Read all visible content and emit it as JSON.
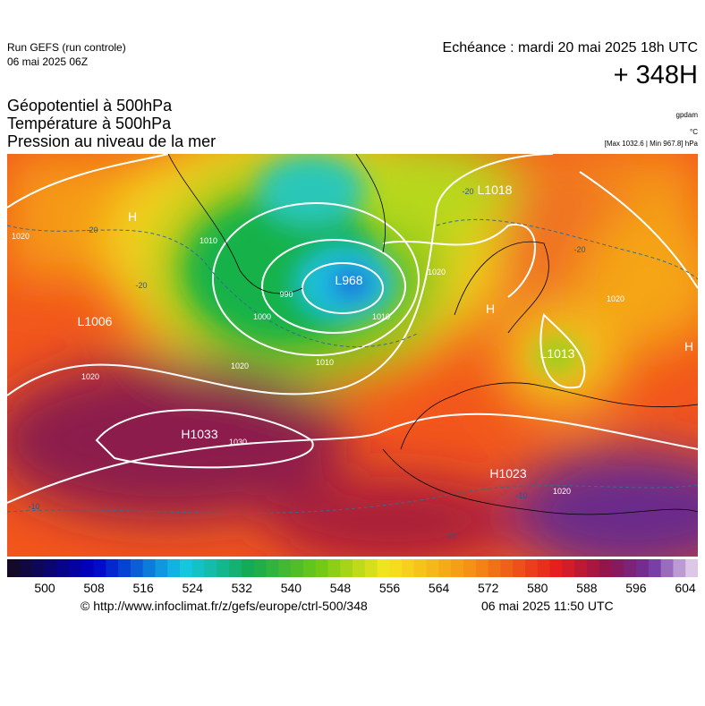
{
  "header": {
    "run": "Run GEFS (run controle)",
    "run_date": "06 mai 2025 06Z",
    "echeance": "Echéance : mardi 20 mai 2025 18h UTC",
    "lead": "+ 348H",
    "fields": [
      "Géopotentiel à 500hPa",
      "Température à 500hPa",
      "Pression au niveau de la mer"
    ],
    "unit_geopotential": "gpdam",
    "unit_temperature": "°C",
    "pressure_range": "[Max 1032.6 | Min 967.8] hPa"
  },
  "map": {
    "labels": [
      {
        "text": "H",
        "kind": "center"
      },
      {
        "text": "H1033",
        "kind": "center"
      },
      {
        "text": "L1006",
        "kind": "center"
      },
      {
        "text": "L968",
        "kind": "center"
      },
      {
        "text": "L1018",
        "kind": "center"
      },
      {
        "text": "H",
        "kind": "center"
      },
      {
        "text": "L1013",
        "kind": "center"
      },
      {
        "text": "H1023",
        "kind": "center"
      },
      {
        "text": "H",
        "kind": "center"
      },
      {
        "text": "1020",
        "kind": "isobar"
      },
      {
        "text": "1010",
        "kind": "isobar"
      },
      {
        "text": "1000",
        "kind": "isobar"
      },
      {
        "text": "990",
        "kind": "isobar"
      },
      {
        "text": "1010",
        "kind": "isobar"
      },
      {
        "text": "1020",
        "kind": "isobar"
      },
      {
        "text": "1030",
        "kind": "isobar"
      },
      {
        "text": "1020",
        "kind": "isobar"
      },
      {
        "text": "1020",
        "kind": "isobar"
      },
      {
        "text": "1020",
        "kind": "isobar"
      },
      {
        "text": "1010",
        "kind": "isobar"
      },
      {
        "text": "1020",
        "kind": "isobar"
      },
      {
        "text": "-20",
        "kind": "isotherm"
      },
      {
        "text": "-20",
        "kind": "isotherm"
      },
      {
        "text": "-20",
        "kind": "isotherm"
      },
      {
        "text": "-20",
        "kind": "isotherm"
      },
      {
        "text": "-10",
        "kind": "isotherm"
      },
      {
        "text": "-10",
        "kind": "isotherm"
      },
      {
        "text": "-10",
        "kind": "isotherm"
      }
    ]
  },
  "colorbar": {
    "ticks": [
      500,
      508,
      516,
      524,
      532,
      540,
      548,
      556,
      564,
      572,
      580,
      588,
      596,
      604
    ]
  },
  "footer": {
    "source": "© http://www.infoclimat.fr/z/gefs/europe/ctrl-500/348",
    "timestamp": "06 mai 2025 11:50 UTC"
  }
}
